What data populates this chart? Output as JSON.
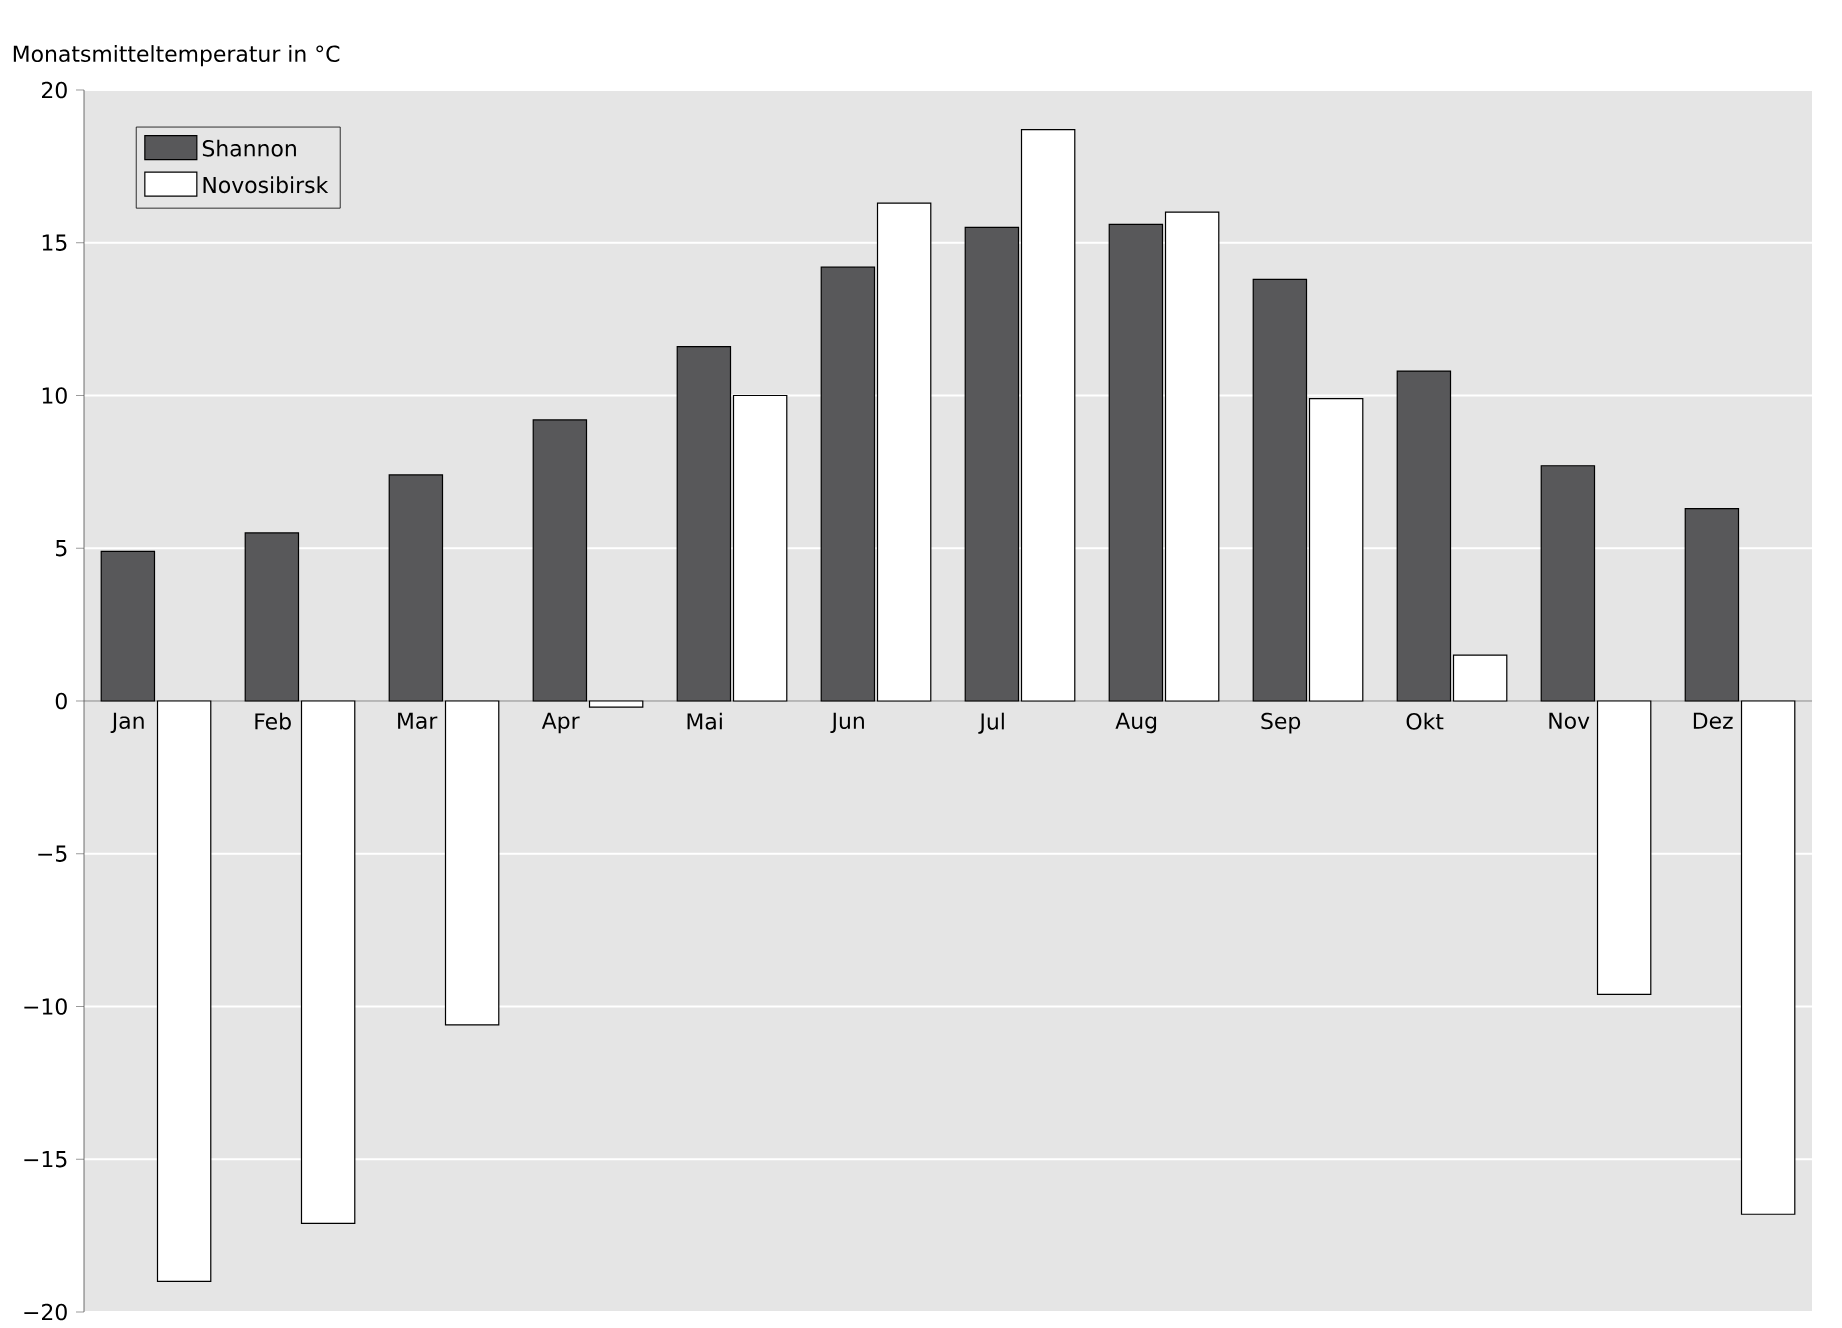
{
  "chart_data": {
    "type": "bar",
    "ylabel": "Monatsmitteltemperatur in °C",
    "categories": [
      "Jan",
      "Feb",
      "Mar",
      "Apr",
      "Mai",
      "Jun",
      "Jul",
      "Aug",
      "Sep",
      "Okt",
      "Nov",
      "Dez"
    ],
    "series": [
      {
        "name": "Shannon",
        "color": "#58585a",
        "values": [
          4.9,
          5.5,
          7.4,
          9.2,
          11.6,
          14.2,
          15.5,
          15.6,
          13.8,
          10.8,
          7.7,
          6.3
        ]
      },
      {
        "name": "Novosibirsk",
        "color": "#ffffff",
        "values": [
          -19.0,
          -17.1,
          -10.6,
          -0.2,
          10.0,
          16.3,
          18.7,
          16.0,
          9.9,
          1.5,
          -9.6,
          -16.8
        ]
      }
    ],
    "ylim": [
      -20,
      20
    ],
    "yticks": [
      {
        "value": -20,
        "label": "−20"
      },
      {
        "value": -15,
        "label": "−15"
      },
      {
        "value": -10,
        "label": "−10"
      },
      {
        "value": -5,
        "label": "−5"
      },
      0,
      5,
      10,
      15,
      20
    ],
    "grid": "y",
    "legend": "top left"
  }
}
